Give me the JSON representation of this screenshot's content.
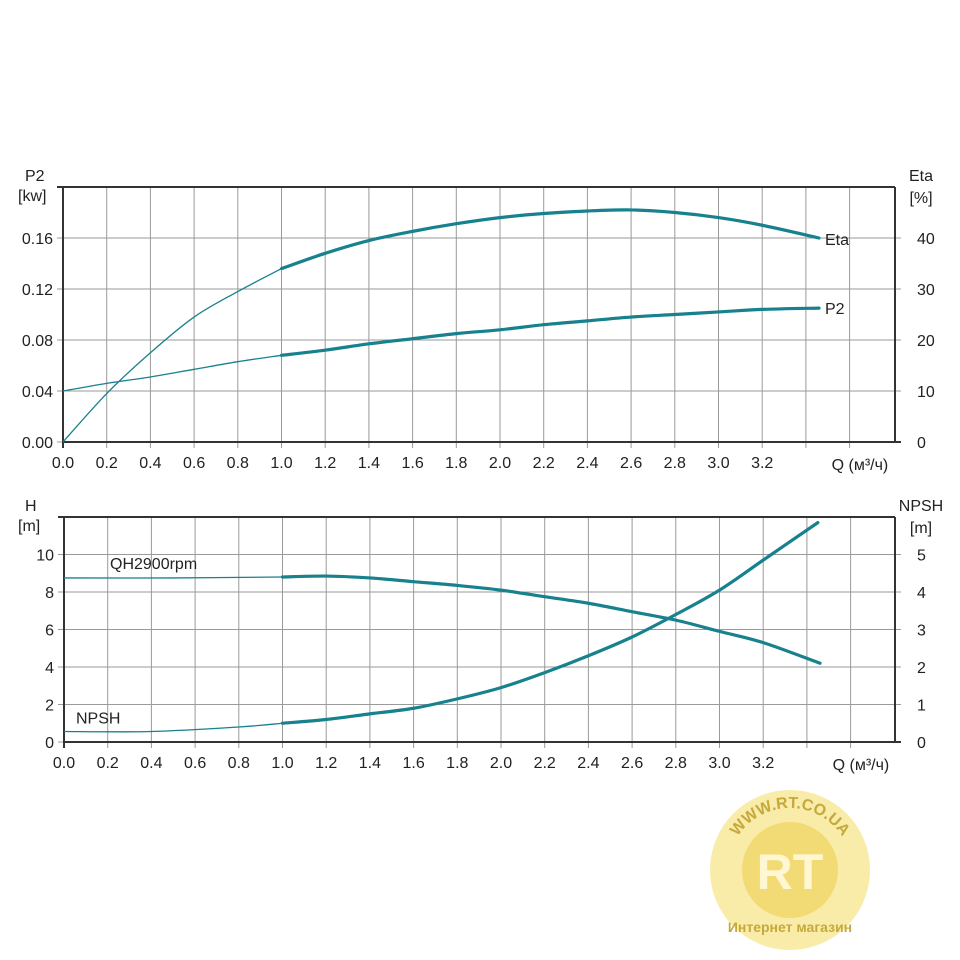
{
  "colors": {
    "curve": "#17818e",
    "grid": "#9a9a9a",
    "axis": "#333333",
    "watermark": "#f2d33a"
  },
  "watermark": {
    "text": "WWW.RT.CO.UA",
    "logo": "RT",
    "subtext": "Интернет магазин"
  },
  "chart_data": [
    {
      "type": "line",
      "x_label": "Q (м³/ч)",
      "x_ticks": [
        "0.0",
        "0.2",
        "0.4",
        "0.6",
        "0.8",
        "1.0",
        "1.2",
        "1.4",
        "1.6",
        "1.8",
        "2.0",
        "2.2",
        "2.4",
        "2.6",
        "2.8",
        "3.0",
        "3.2"
      ],
      "xlim": [
        0,
        3.6
      ],
      "grid": true,
      "y_left": {
        "label_top": "P2",
        "label_unit": "[kw]",
        "range": [
          0,
          0.2
        ],
        "ticks": [
          "0.00",
          "0.04",
          "0.08",
          "0.12",
          "0.16"
        ]
      },
      "y_right": {
        "label_top": "Eta",
        "label_unit": "[%]",
        "range": [
          0,
          50
        ],
        "ticks": [
          "0",
          "10",
          "20",
          "30",
          "40"
        ]
      },
      "series": [
        {
          "name": "Eta",
          "axis": "right",
          "x": [
            0,
            0.2,
            0.4,
            0.6,
            0.8,
            1.0,
            1.2,
            1.4,
            1.6,
            1.8,
            2.0,
            2.2,
            2.4,
            2.6,
            2.8,
            3.0,
            3.2,
            3.46
          ],
          "y": [
            0,
            9.5,
            17.5,
            24.5,
            29.5,
            34,
            37,
            39.5,
            41.3,
            42.8,
            44,
            44.8,
            45.3,
            45.5,
            45,
            44,
            42.5,
            40
          ]
        },
        {
          "name": "P2",
          "axis": "left",
          "x": [
            0,
            0.2,
            0.4,
            0.6,
            0.8,
            1.0,
            1.2,
            1.4,
            1.6,
            1.8,
            2.0,
            2.2,
            2.4,
            2.6,
            2.8,
            3.0,
            3.2,
            3.46
          ],
          "y": [
            0.04,
            0.046,
            0.051,
            0.057,
            0.063,
            0.068,
            0.072,
            0.077,
            0.081,
            0.085,
            0.088,
            0.092,
            0.095,
            0.098,
            0.1,
            0.102,
            0.104,
            0.105
          ]
        }
      ]
    },
    {
      "type": "line",
      "x_label": "Q (м³/ч)",
      "x_ticks": [
        "0.0",
        "0.2",
        "0.4",
        "0.6",
        "0.8",
        "1.0",
        "1.2",
        "1.4",
        "1.6",
        "1.8",
        "2.0",
        "2.2",
        "2.4",
        "2.6",
        "2.8",
        "3.0",
        "3.2"
      ],
      "xlim": [
        0,
        3.6
      ],
      "grid": true,
      "y_left": {
        "label_top": "H",
        "label_unit": "[m]",
        "range": [
          0,
          12
        ],
        "ticks": [
          "0",
          "2",
          "4",
          "6",
          "8",
          "10"
        ]
      },
      "y_right": {
        "label_top": "NPSH",
        "label_unit": "[m]",
        "range": [
          0,
          6
        ],
        "ticks": [
          "0",
          "1",
          "2",
          "3",
          "4",
          "5"
        ]
      },
      "series": [
        {
          "name": "QH2900rpm",
          "axis": "left",
          "x": [
            0,
            0.5,
            1.0,
            1.2,
            1.4,
            1.6,
            1.8,
            2.0,
            2.2,
            2.4,
            2.6,
            2.8,
            3.0,
            3.2,
            3.46
          ],
          "y": [
            8.75,
            8.75,
            8.8,
            8.85,
            8.75,
            8.55,
            8.35,
            8.1,
            7.75,
            7.4,
            6.95,
            6.5,
            5.9,
            5.3,
            4.2
          ]
        },
        {
          "name": "NPSH",
          "axis": "right",
          "x": [
            0,
            0.4,
            0.8,
            1.0,
            1.2,
            1.4,
            1.6,
            1.8,
            2.0,
            2.2,
            2.4,
            2.6,
            2.8,
            3.0,
            3.2,
            3.45
          ],
          "y": [
            0.28,
            0.28,
            0.4,
            0.5,
            0.6,
            0.75,
            0.9,
            1.15,
            1.45,
            1.85,
            2.3,
            2.8,
            3.4,
            4.05,
            4.85,
            5.85
          ]
        }
      ]
    }
  ]
}
